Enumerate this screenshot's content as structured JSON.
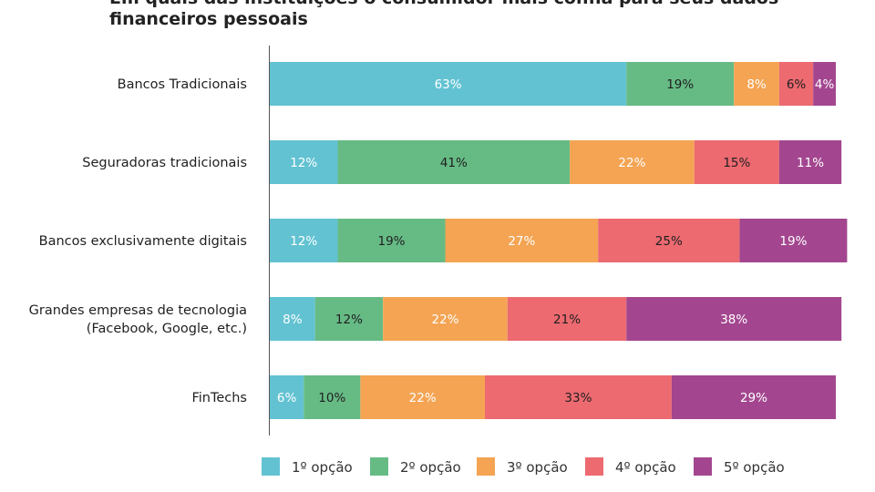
{
  "title_lines": [
    "Em quais das instituições o consumidor mais confia para seus dados",
    "financeiros pessoais"
  ],
  "chart_data": {
    "type": "bar",
    "orientation": "horizontal",
    "stacked": true,
    "title": "Em quais das instituições o consumidor mais confia para seus dados financeiros pessoais",
    "categories": [
      "Bancos Tradicionais",
      "Seguradoras tradicionais",
      "Bancos exclusivamente digitais",
      "Grandes empresas de tecnologia (Facebook, Google, etc.)",
      "FinTechs"
    ],
    "category_lines": [
      [
        "Bancos Tradicionais"
      ],
      [
        "Seguradoras tradicionais"
      ],
      [
        "Bancos exclusivamente digitais"
      ],
      [
        "Grandes empresas de tecnologia",
        "(Facebook, Google, etc.)"
      ],
      [
        "FinTechs"
      ]
    ],
    "series": [
      {
        "name": "1º opção",
        "color": "#62c2d2",
        "label_color": "#ffffff",
        "values": [
          63,
          12,
          12,
          8,
          6
        ]
      },
      {
        "name": "2º opção",
        "color": "#66bb85",
        "label_color": "#1f1f1f",
        "values": [
          19,
          41,
          19,
          12,
          10
        ]
      },
      {
        "name": "3º opção",
        "color": "#f4a453",
        "label_color": "#ffffff",
        "values": [
          8,
          22,
          27,
          22,
          22
        ]
      },
      {
        "name": "4º opção",
        "color": "#ec6a70",
        "label_color": "#1f1f1f",
        "values": [
          6,
          15,
          25,
          21,
          33
        ]
      },
      {
        "name": "5º opção",
        "color": "#a3468f",
        "label_color": "#ffffff",
        "values": [
          4,
          11,
          19,
          38,
          29
        ]
      }
    ],
    "value_suffix": "%",
    "xlim": [
      0,
      100
    ],
    "grid": false,
    "legend_position": "bottom"
  }
}
